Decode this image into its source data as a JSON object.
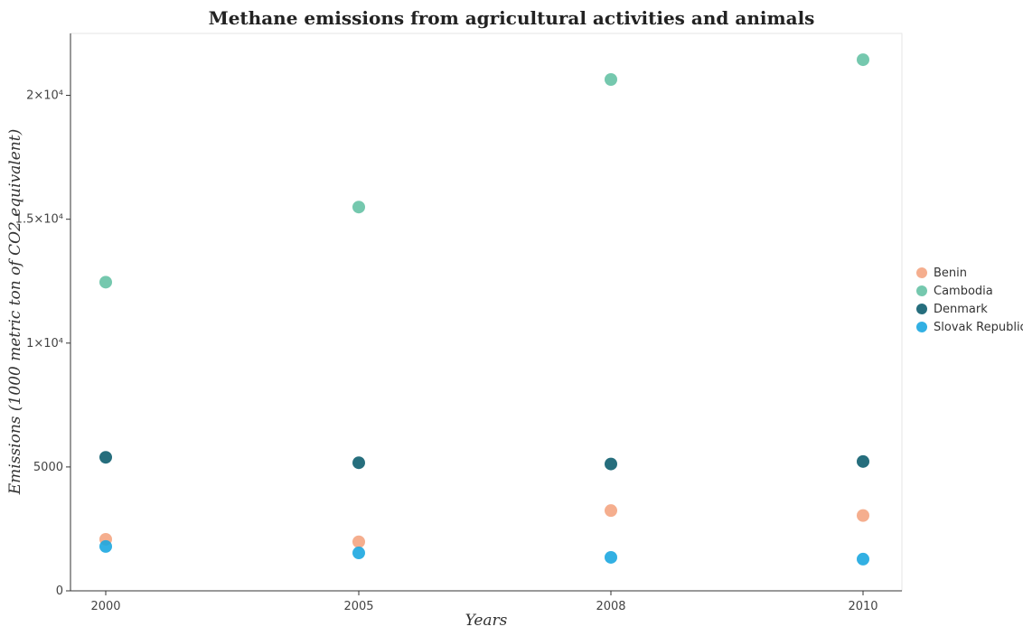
{
  "chart_data": {
    "type": "scatter",
    "title": "Methane emissions from agricultural activities and animals",
    "xlabel": "Years",
    "ylabel": "Emissions (1000 metric ton of CO2 equivalent)",
    "categories": [
      "2000",
      "2005",
      "2008",
      "2010"
    ],
    "ylim": [
      0,
      22500
    ],
    "yticks": [
      0,
      5000,
      10000,
      15000,
      20000
    ],
    "ytick_labels": [
      "0",
      "5000",
      "1×10⁴",
      "1.5×10⁴",
      "2×10⁴"
    ],
    "grid": false,
    "legend_position": "right",
    "series": [
      {
        "name": "Benin",
        "color": "#f4a582",
        "values": [
          2080,
          1980,
          3240,
          3040
        ]
      },
      {
        "name": "Cambodia",
        "color": "#66c2a5",
        "values": [
          12460,
          15490,
          20640,
          21440
        ]
      },
      {
        "name": "Denmark",
        "color": "#0e5e6f",
        "values": [
          5390,
          5170,
          5120,
          5220
        ]
      },
      {
        "name": "Slovak Republic",
        "color": "#1ca7e0",
        "values": [
          1790,
          1530,
          1350,
          1280
        ]
      }
    ]
  }
}
